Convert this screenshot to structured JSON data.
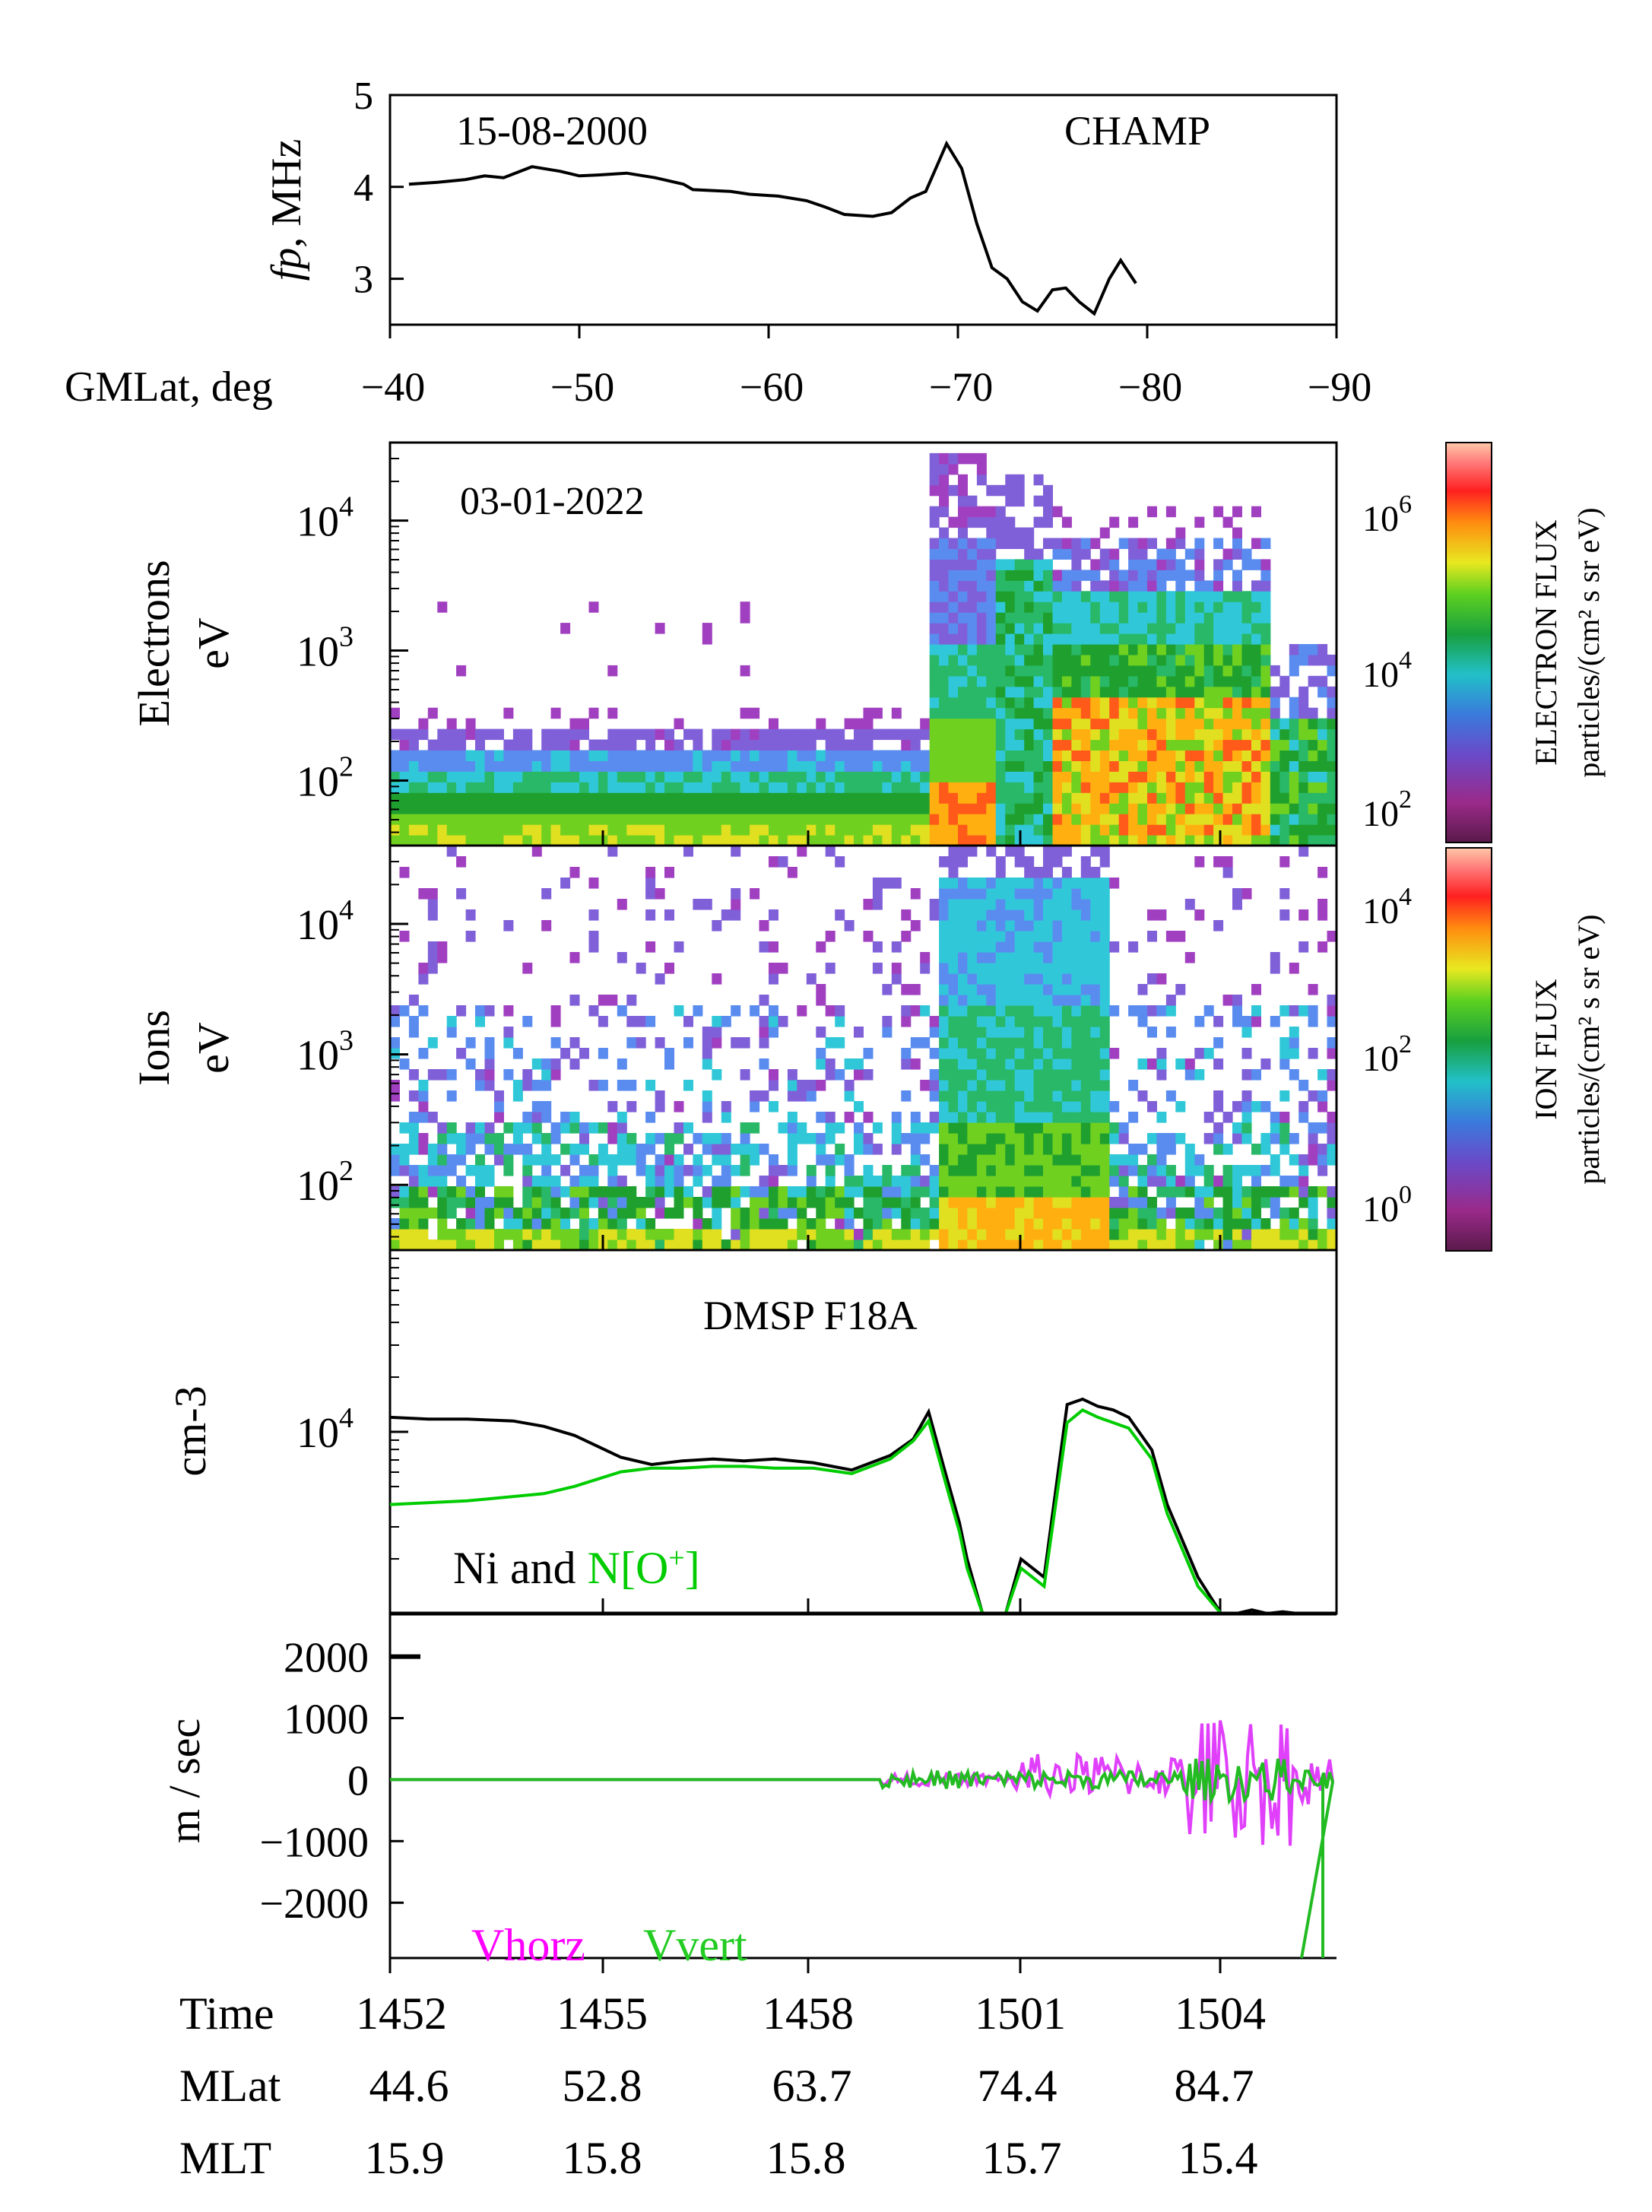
{
  "colors": {
    "axis": "#000000",
    "line_ni": "#000000",
    "line_o": "#00cc00",
    "vhorz": "#e040fb",
    "vvert": "#22bb22"
  },
  "chart_data": [
    {
      "id": "champ_fp",
      "type": "line",
      "ylabel_italic": "fp",
      "ylabel_rest": ", MHz",
      "date_label": "15-08-2000",
      "satellite_label": "CHAMP",
      "xaxis_label": "GMLat, deg",
      "xlim": [
        -40,
        -90
      ],
      "ylim": [
        2.5,
        5
      ],
      "xticks": [
        -40,
        -50,
        -60,
        -70,
        -80,
        -90
      ],
      "xtick_labels": [
        "−40",
        "−50",
        "−60",
        "−70",
        "−80",
        "−90"
      ],
      "yticks": [
        3,
        4,
        5
      ],
      "ytick_labels": [
        "3",
        "4",
        "5"
      ],
      "x": [
        -41,
        -42.5,
        -44,
        -45,
        -46,
        -47.5,
        -49,
        -50,
        -51,
        -52.5,
        -54,
        -55.5,
        -56,
        -58,
        -59,
        -60.5,
        -62,
        -63,
        -64,
        -65.5,
        -66.5,
        -67.5,
        -68.3,
        -69,
        -69.4,
        -70.2,
        -71,
        -71.8,
        -72.6,
        -73.4,
        -74.2,
        -75,
        -75.7,
        -76.4,
        -77.2,
        -78,
        -78.6,
        -79.4
      ],
      "y": [
        4.03,
        4.05,
        4.08,
        4.12,
        4.1,
        4.22,
        4.17,
        4.12,
        4.13,
        4.15,
        4.1,
        4.03,
        3.97,
        3.95,
        3.92,
        3.9,
        3.85,
        3.78,
        3.7,
        3.68,
        3.72,
        3.88,
        3.95,
        4.28,
        4.47,
        4.2,
        3.6,
        3.12,
        3.0,
        2.75,
        2.65,
        2.88,
        2.9,
        2.75,
        2.62,
        3.0,
        3.2,
        2.95
      ]
    },
    {
      "id": "electron_spectrogram",
      "type": "heatmap",
      "date_label": "03-01-2022",
      "ylabel_lines": [
        "Electrons",
        "eV"
      ],
      "ytick_labels": [
        "10",
        "10",
        "10"
      ],
      "ytick_exponents": [
        "4",
        "3",
        "2"
      ],
      "yticks_log10": [
        4,
        3,
        2
      ],
      "ylim_log10": [
        1.5,
        4.6
      ],
      "colorbar_label_lines": [
        "ELECTRON  FLUX",
        "particles/(cm² s sr eV)"
      ],
      "colorbar_tick_labels": [
        "10",
        "10",
        "10"
      ],
      "colorbar_tick_exponents": [
        "6",
        "4",
        "2"
      ]
    },
    {
      "id": "ion_spectrogram",
      "type": "heatmap",
      "ylabel_lines": [
        "Ions",
        "eV"
      ],
      "ytick_labels": [
        "10",
        "10",
        "10"
      ],
      "ytick_exponents": [
        "4",
        "3",
        "2"
      ],
      "yticks_log10": [
        4,
        3,
        2
      ],
      "ylim_log10": [
        1.5,
        4.6
      ],
      "colorbar_label_lines": [
        "ION  FLUX",
        "particles/(cm² s sr eV)"
      ],
      "colorbar_tick_labels": [
        "10",
        "10",
        "10"
      ],
      "colorbar_tick_exponents": [
        "4",
        "2",
        "0"
      ]
    },
    {
      "id": "density",
      "type": "line",
      "title": "DMSP F18A",
      "ylabel": "cm-3",
      "ytick_label": "10",
      "ytick_exponent": "4",
      "legend_ni": "Ni and ",
      "legend_o": "N[O",
      "legend_o_sup": "+",
      "legend_o_end": "]",
      "ylim_log10": [
        3.0,
        5.0
      ],
      "series": [
        {
          "name": "Ni",
          "t": [
            0,
            0.5,
            1,
            1.6,
            2,
            2.4,
            3,
            3.4,
            3.8,
            4.2,
            4.6,
            5,
            5.5,
            6,
            6.5,
            6.8,
            7.0,
            7.2,
            7.4,
            7.5,
            7.7,
            8.0,
            8.2,
            8.5,
            8.8,
            9.0,
            9.2,
            9.4,
            9.6,
            9.9,
            10.1,
            10.3,
            10.5,
            10.8,
            11.0,
            11.2,
            11.4,
            11.6,
            11.8,
            12.0
          ],
          "log10": [
            4.08,
            4.07,
            4.07,
            4.06,
            4.03,
            3.98,
            3.86,
            3.82,
            3.84,
            3.85,
            3.84,
            3.85,
            3.83,
            3.79,
            3.87,
            3.96,
            4.11,
            3.8,
            3.5,
            3.3,
            3.0,
            3.0,
            3.3,
            3.2,
            4.15,
            4.18,
            4.14,
            4.12,
            4.08,
            3.9,
            3.6,
            3.4,
            3.2,
            3.0,
            3.0,
            3.02,
            3.0,
            3.01,
            3.0,
            3.0
          ]
        },
        {
          "name": "N[O+]",
          "t": [
            0,
            1,
            2,
            2.4,
            3,
            3.4,
            3.8,
            4.2,
            4.6,
            5,
            5.5,
            6,
            6.5,
            6.8,
            7.0,
            7.2,
            7.4,
            7.5,
            7.7,
            8.0,
            8.2,
            8.5,
            8.8,
            9.0,
            9.2,
            9.4,
            9.6,
            9.9,
            10.1,
            10.3,
            10.5,
            10.8
          ],
          "log10": [
            3.6,
            3.62,
            3.66,
            3.7,
            3.78,
            3.8,
            3.8,
            3.81,
            3.81,
            3.8,
            3.8,
            3.77,
            3.85,
            3.95,
            4.06,
            3.75,
            3.45,
            3.25,
            3.0,
            3.0,
            3.25,
            3.15,
            4.05,
            4.12,
            4.08,
            4.05,
            4.02,
            3.85,
            3.55,
            3.35,
            3.15,
            3.0
          ]
        }
      ]
    },
    {
      "id": "velocity",
      "type": "line",
      "ylabel": "m / sec",
      "ylim": [
        -2900,
        2700
      ],
      "yticks": [
        2000,
        1000,
        0,
        -1000,
        -2000
      ],
      "ytick_labels": [
        "2000",
        "1000",
        "0",
        "−1000",
        "−2000"
      ],
      "legend_vhorz": "Vhorz",
      "legend_vvert": "Vvert"
    }
  ],
  "bottom_axis": {
    "row_labels": [
      "Time",
      "MLat",
      "MLT"
    ],
    "time": [
      "1452",
      "1455",
      "1458",
      "1501",
      "1504"
    ],
    "mlat": [
      "44.6",
      "52.8",
      "63.7",
      "74.4",
      "84.7"
    ],
    "mlt": [
      "15.9",
      "15.8",
      "15.8",
      "15.7",
      "15.4"
    ]
  }
}
